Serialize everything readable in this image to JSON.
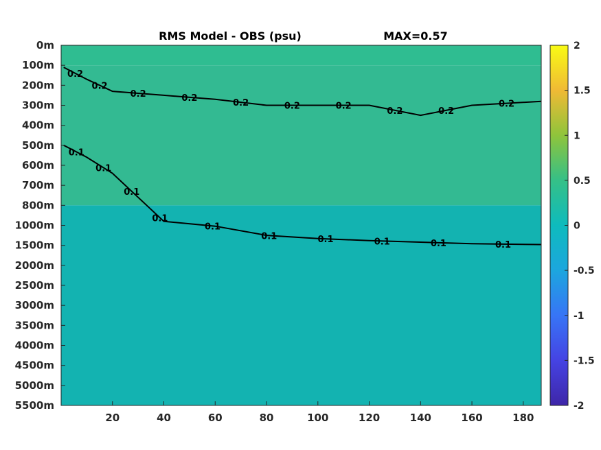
{
  "chart_data": {
    "type": "heatmap",
    "title": "RMS Model - OBS (psu)",
    "max_label": "MAX=0.57",
    "xlabel": "",
    "ylabel": "",
    "xlim": [
      0,
      187
    ],
    "x_ticks": [
      20,
      40,
      60,
      80,
      100,
      120,
      140,
      160,
      180
    ],
    "y_ticks": [
      "0m",
      "100m",
      "200m",
      "300m",
      "400m",
      "500m",
      "600m",
      "700m",
      "800m",
      "1000m",
      "1500m",
      "2000m",
      "2500m",
      "3000m",
      "3500m",
      "4000m",
      "4500m",
      "5000m",
      "5500m"
    ],
    "colorbar": {
      "range": [
        -2,
        2
      ],
      "ticks": [
        "2",
        "1.5",
        "1",
        "0.5",
        "0",
        "-0.5",
        "-1",
        "-1.5",
        "-2"
      ],
      "colormap": "parula"
    },
    "field_levels": [
      {
        "depth_from": "0m",
        "depth_to": "100m",
        "value": 0.3
      },
      {
        "depth_from": "100m",
        "depth_to": "800m",
        "value": 0.18
      },
      {
        "depth_from": "800m",
        "depth_to": "5500m",
        "value": 0.03
      }
    ],
    "contours": [
      {
        "level": "0.2",
        "labels": [
          "0.2",
          "0.2",
          "0.2",
          "0.2",
          "0.2",
          "0.2",
          "0.2",
          "0.2",
          "0.2",
          "0.2"
        ],
        "depths": [
          [
            1,
            110
          ],
          [
            10,
            170
          ],
          [
            20,
            230
          ],
          [
            40,
            250
          ],
          [
            60,
            270
          ],
          [
            80,
            300
          ],
          [
            100,
            300
          ],
          [
            120,
            300
          ],
          [
            140,
            350
          ],
          [
            160,
            300
          ],
          [
            187,
            280
          ]
        ]
      },
      {
        "level": "0.1",
        "labels": [
          "0.1",
          "0.1",
          "0.1",
          "0.1",
          "0.1",
          "0.1",
          "0.1",
          "0.1",
          "0.1",
          "0.1"
        ],
        "depths": [
          [
            1,
            500
          ],
          [
            10,
            560
          ],
          [
            20,
            640
          ],
          [
            30,
            760
          ],
          [
            40,
            960
          ],
          [
            60,
            1020
          ],
          [
            80,
            1250
          ],
          [
            100,
            1330
          ],
          [
            120,
            1380
          ],
          [
            140,
            1420
          ],
          [
            160,
            1460
          ],
          [
            187,
            1480
          ]
        ]
      }
    ],
    "colors": {
      "upper": "#2fbd91",
      "middle": "#33ba92",
      "deep": "#13b3b1",
      "contour": "#000000",
      "frame": "#262626"
    }
  }
}
